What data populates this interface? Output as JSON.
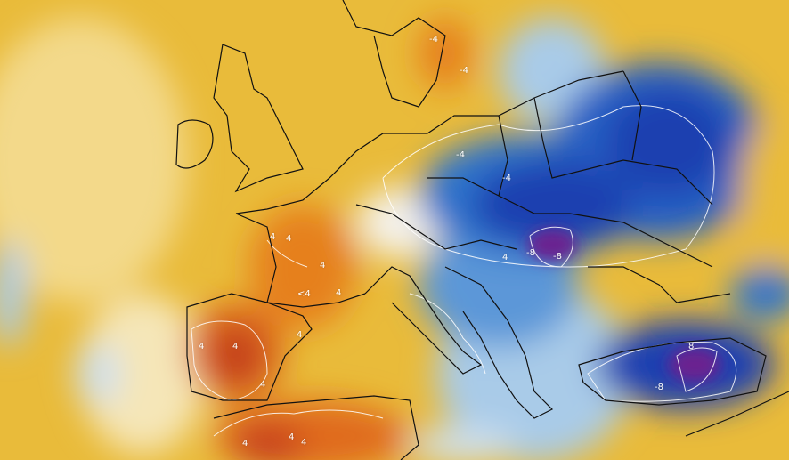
{
  "map": {
    "kind": "temperature anomaly map, Europe",
    "palette": {
      "warm_light": "#f3d98a",
      "warm": "#e8b52e",
      "orange": "#e6801e",
      "red": "#c8401a",
      "neutral": "#f4f1ea",
      "cool_light": "#a9cbe8",
      "cool": "#2f73cc",
      "cold": "#1c3fb0",
      "very_cold": "#6b2290",
      "contour": "#ffffff",
      "borders": "#111111"
    },
    "contour_labels": [
      "-4",
      "4",
      "4",
      "4",
      "<4",
      "4",
      "4",
      "4",
      "4",
      "4",
      "-4",
      "-8",
      "-8",
      "8",
      "-8",
      "-4",
      "4",
      "4",
      "-4",
      "4",
      "4"
    ]
  }
}
